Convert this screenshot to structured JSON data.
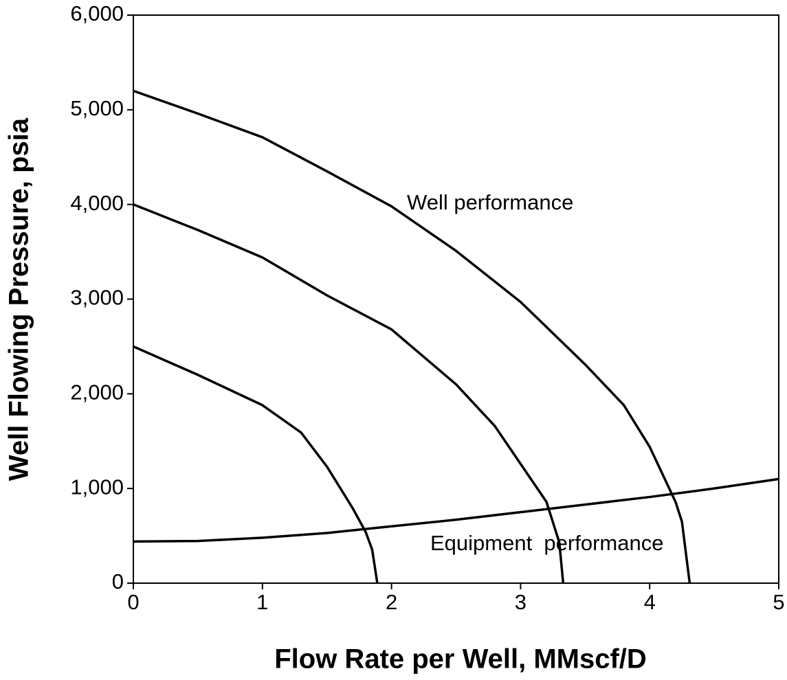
{
  "chart_data": {
    "type": "line",
    "x_label": "Flow Rate per Well, MMscf/D",
    "y_label": "Well Flowing Pressure, psia",
    "annotations": [
      "Well performance",
      "Equipment  performance"
    ],
    "xlim": [
      0,
      5
    ],
    "xticks": [
      0,
      1,
      2,
      3,
      4,
      5
    ],
    "ylim": [
      0,
      6000
    ],
    "yticks": [
      0,
      {
        "value": 1000,
        "label": "1,000"
      },
      {
        "value": 2000,
        "label": "2,000"
      },
      {
        "value": 3000,
        "label": "3,000"
      },
      {
        "value": 4000,
        "label": "4,000"
      },
      {
        "value": 5000,
        "label": "5,000"
      },
      {
        "value": 6000,
        "label": "6,000"
      }
    ],
    "color": "#000000",
    "series": [
      {
        "x": [
          0,
          0.5,
          1,
          1.3,
          1.5,
          1.7,
          1.8,
          1.85,
          1.89
        ],
        "values": [
          2500,
          2200,
          1880,
          1590,
          1230,
          790,
          540,
          355,
          0
        ]
      },
      {
        "x": [
          0,
          0.5,
          1,
          1.5,
          2,
          2.5,
          2.8,
          3,
          3.2,
          3.3,
          3.33
        ],
        "values": [
          4000,
          3730,
          3440,
          3040,
          2680,
          2100,
          1660,
          1260,
          860,
          430,
          0
        ]
      },
      {
        "x": [
          0,
          0.5,
          1,
          1.5,
          2,
          2.5,
          3,
          3.5,
          3.8,
          4,
          4.2,
          4.25,
          4.31
        ],
        "values": [
          5200,
          4960,
          4710,
          4350,
          3980,
          3510,
          2970,
          2310,
          1880,
          1440,
          860,
          650,
          0
        ]
      },
      {
        "x": [
          0,
          0.5,
          1,
          1.5,
          2,
          2.5,
          3,
          3.5,
          4,
          4.5,
          5
        ],
        "values": [
          440,
          445,
          480,
          530,
          600,
          670,
          750,
          830,
          910,
          1000,
          1100
        ]
      }
    ]
  }
}
